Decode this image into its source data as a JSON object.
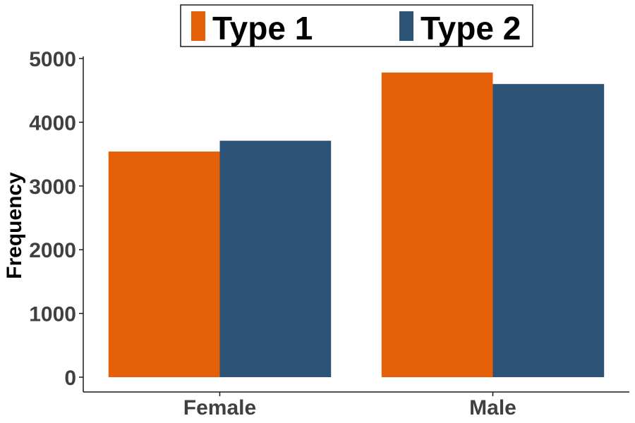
{
  "chart_data": {
    "type": "bar",
    "categories": [
      "Female",
      "Male"
    ],
    "series": [
      {
        "name": "Type 1",
        "values": [
          3540,
          4780
        ],
        "color": "#E66009"
      },
      {
        "name": "Type 2",
        "values": [
          3710,
          4600
        ],
        "color": "#2C5275"
      }
    ],
    "xlabel": "",
    "ylabel": "Frequency",
    "ylim": [
      0,
      5000
    ],
    "yticks": [
      "0",
      "1000",
      "2000",
      "3000",
      "4000",
      "5000"
    ],
    "grid": false,
    "legend_position": "top"
  }
}
